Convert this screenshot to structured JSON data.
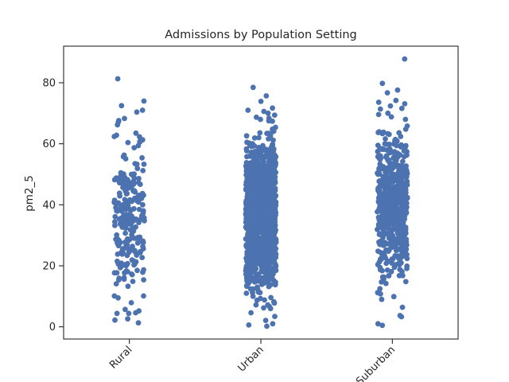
{
  "chart_data": {
    "type": "scatter",
    "subtype": "strip",
    "title": "Admissions by Population Setting",
    "xlabel": "",
    "ylabel": "pm2_5",
    "categories": [
      "Rural",
      "Urban",
      "Suburban"
    ],
    "ylim": [
      -4,
      92
    ],
    "yticks": [
      0,
      20,
      40,
      60,
      80
    ],
    "grid": false,
    "marker_color": "#4c72b0",
    "series": [
      {
        "category": "Rural",
        "n_points": 240,
        "range": [
          1,
          81
        ],
        "center": 35,
        "spread": 14,
        "outliers": [
          81.3,
          74.0,
          72.5,
          71.0,
          68.3,
          67.6,
          67.1,
          66.2,
          4.4,
          2.6,
          1.3
        ]
      },
      {
        "category": "Urban",
        "n_points": 1400,
        "range": [
          0,
          78
        ],
        "center": 37,
        "spread": 12,
        "outliers": [
          78.5,
          75.7,
          73.9,
          70.0,
          1.0,
          0.6,
          0.2
        ]
      },
      {
        "category": "Suburban",
        "n_points": 600,
        "range": [
          0,
          88
        ],
        "center": 40,
        "spread": 12,
        "outliers": [
          87.8,
          74.2,
          73.6,
          73.1,
          71.6,
          70.0,
          0.5,
          1.0
        ]
      }
    ]
  }
}
